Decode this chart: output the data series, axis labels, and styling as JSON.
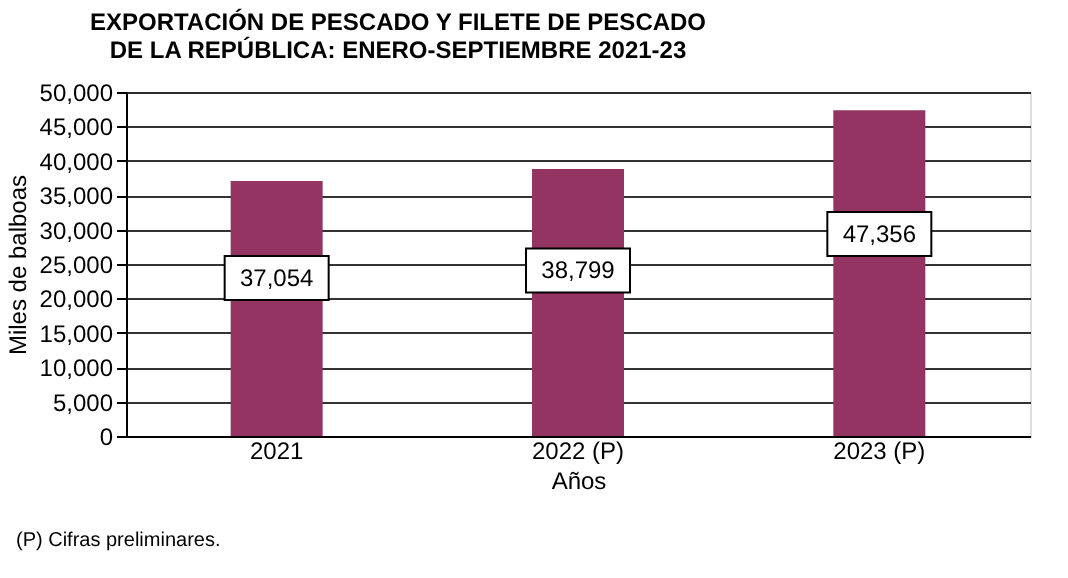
{
  "chart_data": {
    "type": "bar",
    "title": "EXPORTACIÓN DE PESCADO Y FILETE DE PESCADO\nDE LA REPÚBLICA:  ENERO-SEPTIEMBRE  2021-23",
    "xlabel": "Años",
    "ylabel": "Miles de balboas",
    "categories": [
      "2021",
      "2022 (P)",
      "2023 (P)"
    ],
    "values": [
      37054,
      38799,
      47356
    ],
    "color": "#943462",
    "ylim": [
      0,
      50000
    ],
    "yticks": [
      {
        "value": 0,
        "label": "0"
      },
      {
        "value": 5000,
        "label": "5,000"
      },
      {
        "value": 10000,
        "label": "10,000"
      },
      {
        "value": 15000,
        "label": "15,000"
      },
      {
        "value": 20000,
        "label": "20,000"
      },
      {
        "value": 25000,
        "label": "25,000"
      },
      {
        "value": 30000,
        "label": "30,000"
      },
      {
        "value": 35000,
        "label": "35,000"
      },
      {
        "value": 40000,
        "label": "40,000"
      },
      {
        "value": 45000,
        "label": "45,000"
      },
      {
        "value": 50000,
        "label": "50,000"
      }
    ],
    "grid": "y",
    "value_labels": [
      "37,054",
      "38,799",
      "47,356"
    ],
    "annotations": [
      "(P) Cifras preliminares."
    ]
  }
}
